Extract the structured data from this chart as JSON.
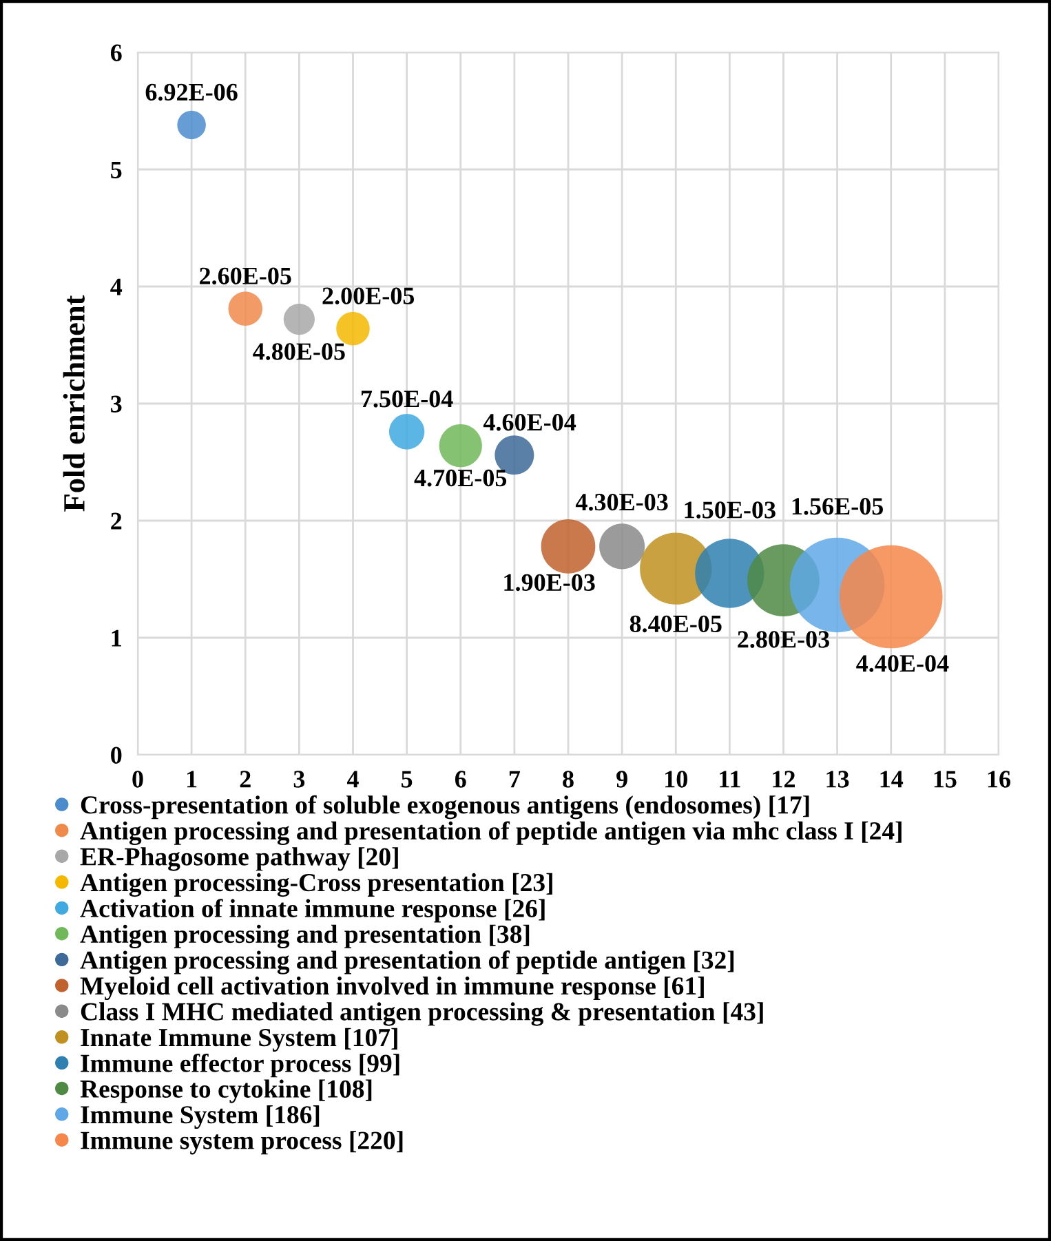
{
  "chart_data": {
    "type": "bubble",
    "ylabel": "Fold enrichment",
    "xlim": [
      0,
      16
    ],
    "xticks": [
      0,
      1,
      2,
      3,
      4,
      5,
      6,
      7,
      8,
      9,
      10,
      11,
      12,
      13,
      14,
      15,
      16
    ],
    "ylim": [
      0,
      6
    ],
    "yticks": [
      0,
      1,
      2,
      3,
      4,
      5,
      6
    ],
    "grid": true,
    "legend": "bottom",
    "marker": "circle",
    "series": [
      {
        "name": "Cross-presentation of soluble exogenous antigens (endosomes) [17]",
        "color": "#4a8ccc",
        "x": [
          1
        ],
        "values": [
          5.38
        ],
        "sizes": [
          0.077
        ]
      },
      {
        "name": "Antigen processing and presentation of peptide antigen via mhc class I [24]",
        "color": "#f08a4b",
        "x": [
          2
        ],
        "values": [
          3.81
        ],
        "sizes": [
          0.109
        ]
      },
      {
        "name": "ER-Phagosome pathway [20]",
        "color": "#a8a8a8",
        "x": [
          3
        ],
        "values": [
          3.72
        ],
        "sizes": [
          0.091
        ]
      },
      {
        "name": "Antigen processing-Cross presentation [23]",
        "color": "#f5b800",
        "x": [
          4
        ],
        "values": [
          3.64
        ],
        "sizes": [
          0.105
        ]
      },
      {
        "name": "Activation of innate immune response [26]",
        "color": "#3fa9e0",
        "x": [
          5
        ],
        "values": [
          2.76
        ],
        "sizes": [
          0.118
        ]
      },
      {
        "name": "Antigen processing and presentation [38]",
        "color": "#70b85a",
        "x": [
          6
        ],
        "values": [
          2.64
        ],
        "sizes": [
          0.173
        ]
      },
      {
        "name": "Antigen processing and presentation of peptide antigen [32]",
        "color": "#3d6a99",
        "x": [
          7
        ],
        "values": [
          2.56
        ],
        "sizes": [
          0.145
        ]
      },
      {
        "name": "Myeloid cell activation involved in immune response [61]",
        "color": "#c0622d",
        "x": [
          8
        ],
        "values": [
          1.78
        ],
        "sizes": [
          0.277
        ]
      },
      {
        "name": "Class I MHC mediated antigen processing & presentation [43]",
        "color": "#8a8a8a",
        "x": [
          9
        ],
        "values": [
          1.78
        ],
        "sizes": [
          0.195
        ]
      },
      {
        "name": "Innate Immune System [107]",
        "color": "#c09020",
        "x": [
          10
        ],
        "values": [
          1.59
        ],
        "sizes": [
          0.486
        ]
      },
      {
        "name": "Immune effector process [99]",
        "color": "#2e80b0",
        "x": [
          11
        ],
        "values": [
          1.55
        ],
        "sizes": [
          0.45
        ]
      },
      {
        "name": "Response to cytokine [108]",
        "color": "#4f8a45",
        "x": [
          12
        ],
        "values": [
          1.49
        ],
        "sizes": [
          0.491
        ]
      },
      {
        "name": "Immune System [186]",
        "color": "#5fa8e8",
        "x": [
          13
        ],
        "values": [
          1.45
        ],
        "sizes": [
          0.845
        ]
      },
      {
        "name": "Immune system process [220]",
        "color": "#f5874a",
        "x": [
          14
        ],
        "values": [
          1.35
        ],
        "sizes": [
          1
        ]
      }
    ],
    "annotations": [
      {
        "text": "6.92E-06",
        "x": 1,
        "y": 5.38
      },
      {
        "text": "2.60E-05",
        "x": 2,
        "y": 3.81
      },
      {
        "text": "4.80E-05",
        "x": 3,
        "y": 3.72
      },
      {
        "text": "2.00E-05",
        "x": 4,
        "y": 3.64
      },
      {
        "text": "7.50E-04",
        "x": 5,
        "y": 2.76
      },
      {
        "text": "4.70E-05",
        "x": 6,
        "y": 2.64
      },
      {
        "text": "4.60E-04",
        "x": 7,
        "y": 2.56
      },
      {
        "text": "1.90E-03",
        "x": 8,
        "y": 1.78
      },
      {
        "text": "4.30E-03",
        "x": 9,
        "y": 1.78
      },
      {
        "text": "8.40E-05",
        "x": 10,
        "y": 1.59
      },
      {
        "text": "1.50E-03",
        "x": 11,
        "y": 1.55
      },
      {
        "text": "2.80E-03",
        "x": 12,
        "y": 1.49
      },
      {
        "text": "1.56E-05",
        "x": 13,
        "y": 1.45
      },
      {
        "text": "4.40E-04",
        "x": 14,
        "y": 1.35
      }
    ]
  }
}
